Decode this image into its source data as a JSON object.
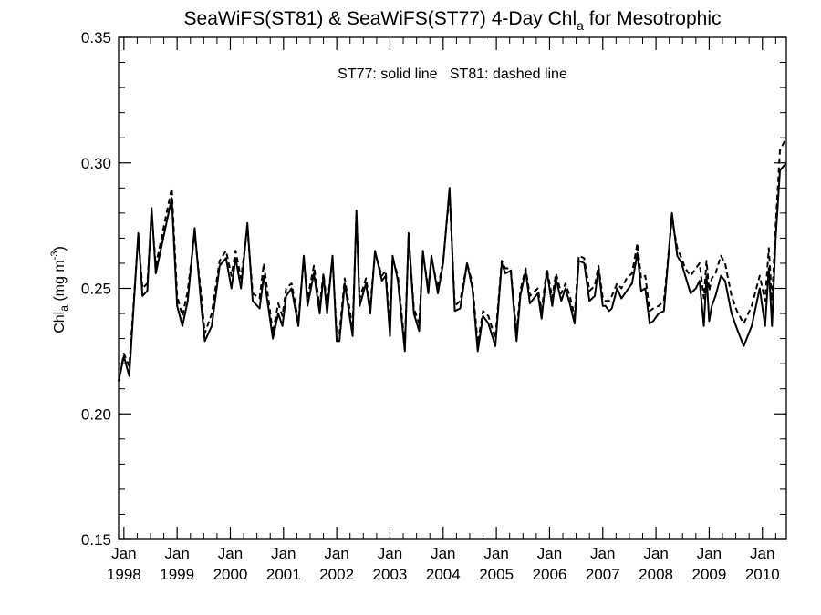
{
  "chart_data": {
    "type": "line",
    "title": "SeaWiFS(ST81) & SeaWiFS(ST77) 4-Day Chl",
    "title_sub": "a",
    "title_tail": " for Mesotrophic",
    "ylabel": "Chl",
    "ylabel_sub": "a",
    "ylabel_units_open": " (mg m",
    "ylabel_units_sup": "-3",
    "ylabel_units_close": ")",
    "annotation": "ST77: solid line   ST81: dashed line",
    "xlim": [
      1997.9,
      2010.45
    ],
    "ylim": [
      0.15,
      0.35
    ],
    "yticks": [
      {
        "value": 0.15,
        "label": "0.15"
      },
      {
        "value": 0.2,
        "label": "0.20"
      },
      {
        "value": 0.25,
        "label": "0.25"
      },
      {
        "value": 0.3,
        "label": "0.30"
      },
      {
        "value": 0.35,
        "label": "0.35"
      }
    ],
    "xticks": [
      {
        "value": 1998,
        "month": "Jan",
        "year": "1998"
      },
      {
        "value": 1999,
        "month": "Jan",
        "year": "1999"
      },
      {
        "value": 2000,
        "month": "Jan",
        "year": "2000"
      },
      {
        "value": 2001,
        "month": "Jan",
        "year": "2001"
      },
      {
        "value": 2002,
        "month": "Jan",
        "year": "2002"
      },
      {
        "value": 2003,
        "month": "Jan",
        "year": "2003"
      },
      {
        "value": 2004,
        "month": "Jan",
        "year": "2004"
      },
      {
        "value": 2005,
        "month": "Jan",
        "year": "2005"
      },
      {
        "value": 2006,
        "month": "Jan",
        "year": "2006"
      },
      {
        "value": 2007,
        "month": "Jan",
        "year": "2007"
      },
      {
        "value": 2008,
        "month": "Jan",
        "year": "2008"
      },
      {
        "value": 2009,
        "month": "Jan",
        "year": "2009"
      },
      {
        "value": 2010,
        "month": "Jan",
        "year": "2010"
      }
    ],
    "series": [
      {
        "name": "ST77",
        "style": "solid",
        "x": [
          1997.9,
          1998.0,
          1998.1,
          1998.27,
          1998.35,
          1998.44,
          1998.52,
          1998.6,
          1998.9,
          1999.0,
          1999.1,
          1999.2,
          1999.33,
          1999.45,
          1999.52,
          1999.65,
          1999.8,
          1999.92,
          2000.02,
          2000.1,
          2000.2,
          2000.32,
          2000.42,
          2000.55,
          2000.63,
          2000.8,
          2000.9,
          2000.98,
          2001.05,
          2001.15,
          2001.28,
          2001.38,
          2001.45,
          2001.57,
          2001.68,
          2001.75,
          2001.82,
          2001.92,
          2002.0,
          2002.05,
          2002.15,
          2002.3,
          2002.37,
          2002.43,
          2002.55,
          2002.63,
          2002.72,
          2002.85,
          2002.92,
          2003.0,
          2003.05,
          2003.15,
          2003.28,
          2003.35,
          2003.45,
          2003.55,
          2003.62,
          2003.72,
          2003.78,
          2003.9,
          2004.0,
          2004.12,
          2004.22,
          2004.32,
          2004.45,
          2004.55,
          2004.65,
          2004.75,
          2004.85,
          2004.98,
          2005.1,
          2005.17,
          2005.27,
          2005.38,
          2005.45,
          2005.55,
          2005.63,
          2005.78,
          2005.85,
          2005.95,
          2006.05,
          2006.12,
          2006.22,
          2006.3,
          2006.38,
          2006.47,
          2006.55,
          2006.65,
          2006.75,
          2006.85,
          2006.92,
          2007.0,
          2007.05,
          2007.12,
          2007.17,
          2007.27,
          2007.35,
          2007.45,
          2007.55,
          2007.65,
          2007.72,
          2007.8,
          2007.88,
          2007.95,
          2008.05,
          2008.15,
          2008.3,
          2008.4,
          2008.48,
          2008.55,
          2008.65,
          2008.75,
          2008.82,
          2008.9,
          2008.95,
          2009.0,
          2009.05,
          2009.12,
          2009.22,
          2009.3,
          2009.42,
          2009.52,
          2009.65,
          2009.8,
          2009.95,
          2010.05,
          2010.12,
          2010.18,
          2010.25,
          2010.33,
          2010.45
        ],
        "values": [
          0.213,
          0.223,
          0.215,
          0.272,
          0.247,
          0.249,
          0.282,
          0.256,
          0.286,
          0.243,
          0.235,
          0.245,
          0.274,
          0.244,
          0.229,
          0.235,
          0.259,
          0.262,
          0.25,
          0.262,
          0.25,
          0.276,
          0.245,
          0.242,
          0.255,
          0.23,
          0.24,
          0.235,
          0.247,
          0.25,
          0.235,
          0.263,
          0.243,
          0.256,
          0.24,
          0.255,
          0.24,
          0.263,
          0.229,
          0.229,
          0.252,
          0.231,
          0.281,
          0.243,
          0.252,
          0.24,
          0.265,
          0.253,
          0.255,
          0.231,
          0.263,
          0.253,
          0.225,
          0.272,
          0.24,
          0.233,
          0.265,
          0.248,
          0.263,
          0.248,
          0.26,
          0.29,
          0.241,
          0.242,
          0.26,
          0.25,
          0.225,
          0.239,
          0.236,
          0.227,
          0.26,
          0.256,
          0.257,
          0.229,
          0.247,
          0.257,
          0.244,
          0.248,
          0.238,
          0.257,
          0.243,
          0.254,
          0.245,
          0.25,
          0.244,
          0.236,
          0.261,
          0.26,
          0.245,
          0.247,
          0.258,
          0.243,
          0.243,
          0.241,
          0.242,
          0.25,
          0.246,
          0.249,
          0.252,
          0.264,
          0.249,
          0.25,
          0.236,
          0.237,
          0.24,
          0.241,
          0.28,
          0.263,
          0.26,
          0.255,
          0.248,
          0.25,
          0.253,
          0.235,
          0.255,
          0.237,
          0.243,
          0.247,
          0.255,
          0.253,
          0.24,
          0.234,
          0.227,
          0.235,
          0.25,
          0.235,
          0.258,
          0.235,
          0.27,
          0.297,
          0.3
        ]
      },
      {
        "name": "ST81",
        "style": "dashed",
        "x": [
          1997.9,
          1998.0,
          1998.1,
          1998.27,
          1998.35,
          1998.44,
          1998.52,
          1998.6,
          1998.9,
          1999.0,
          1999.1,
          1999.2,
          1999.33,
          1999.45,
          1999.52,
          1999.65,
          1999.8,
          1999.92,
          2000.02,
          2000.1,
          2000.2,
          2000.32,
          2000.42,
          2000.55,
          2000.63,
          2000.8,
          2000.9,
          2000.98,
          2001.05,
          2001.15,
          2001.28,
          2001.38,
          2001.45,
          2001.57,
          2001.68,
          2001.75,
          2001.82,
          2001.92,
          2002.0,
          2002.05,
          2002.15,
          2002.3,
          2002.37,
          2002.43,
          2002.55,
          2002.63,
          2002.72,
          2002.85,
          2002.92,
          2003.0,
          2003.05,
          2003.15,
          2003.28,
          2003.35,
          2003.45,
          2003.55,
          2003.62,
          2003.72,
          2003.78,
          2003.9,
          2004.0,
          2004.12,
          2004.22,
          2004.32,
          2004.45,
          2004.55,
          2004.65,
          2004.75,
          2004.85,
          2004.98,
          2005.1,
          2005.17,
          2005.27,
          2005.38,
          2005.45,
          2005.55,
          2005.63,
          2005.78,
          2005.85,
          2005.95,
          2006.05,
          2006.12,
          2006.22,
          2006.3,
          2006.38,
          2006.47,
          2006.55,
          2006.65,
          2006.75,
          2006.85,
          2006.92,
          2007.0,
          2007.05,
          2007.12,
          2007.17,
          2007.27,
          2007.35,
          2007.45,
          2007.55,
          2007.65,
          2007.72,
          2007.8,
          2007.88,
          2007.95,
          2008.05,
          2008.15,
          2008.3,
          2008.4,
          2008.48,
          2008.55,
          2008.65,
          2008.75,
          2008.82,
          2008.9,
          2008.95,
          2009.0,
          2009.05,
          2009.12,
          2009.22,
          2009.3,
          2009.42,
          2009.52,
          2009.65,
          2009.8,
          2009.95,
          2010.05,
          2010.12,
          2010.18,
          2010.25,
          2010.33,
          2010.45
        ],
        "values": [
          0.213,
          0.224,
          0.219,
          0.271,
          0.25,
          0.252,
          0.28,
          0.259,
          0.29,
          0.247,
          0.239,
          0.249,
          0.272,
          0.248,
          0.232,
          0.24,
          0.261,
          0.265,
          0.255,
          0.265,
          0.254,
          0.274,
          0.248,
          0.246,
          0.26,
          0.232,
          0.244,
          0.239,
          0.25,
          0.252,
          0.237,
          0.262,
          0.246,
          0.259,
          0.243,
          0.256,
          0.243,
          0.262,
          0.232,
          0.232,
          0.254,
          0.234,
          0.279,
          0.246,
          0.254,
          0.243,
          0.264,
          0.255,
          0.257,
          0.234,
          0.262,
          0.255,
          0.227,
          0.271,
          0.242,
          0.236,
          0.264,
          0.25,
          0.262,
          0.25,
          0.261,
          0.288,
          0.243,
          0.245,
          0.26,
          0.252,
          0.228,
          0.241,
          0.239,
          0.23,
          0.261,
          0.258,
          0.258,
          0.232,
          0.249,
          0.258,
          0.247,
          0.25,
          0.241,
          0.258,
          0.246,
          0.256,
          0.248,
          0.252,
          0.247,
          0.239,
          0.263,
          0.262,
          0.249,
          0.251,
          0.259,
          0.246,
          0.245,
          0.245,
          0.247,
          0.252,
          0.25,
          0.254,
          0.256,
          0.268,
          0.254,
          0.255,
          0.241,
          0.242,
          0.243,
          0.245,
          0.278,
          0.266,
          0.262,
          0.258,
          0.255,
          0.258,
          0.26,
          0.246,
          0.261,
          0.249,
          0.254,
          0.256,
          0.263,
          0.26,
          0.247,
          0.241,
          0.236,
          0.243,
          0.255,
          0.245,
          0.266,
          0.245,
          0.275,
          0.305,
          0.31
        ]
      }
    ]
  }
}
